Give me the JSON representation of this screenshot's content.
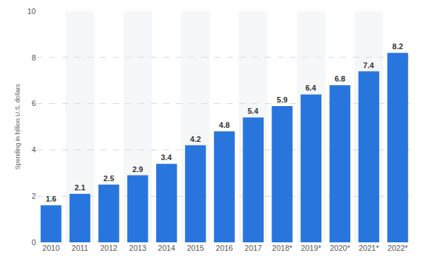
{
  "chart_data": {
    "type": "bar",
    "y_label": "Spending in billion U.S. dollars",
    "categories": [
      "2010",
      "2011",
      "2012",
      "2013",
      "2014",
      "2015",
      "2016",
      "2017",
      "2018*",
      "2019*",
      "2020*",
      "2021*",
      "2022*"
    ],
    "values": [
      1.6,
      2.1,
      2.5,
      2.9,
      3.4,
      4.2,
      4.8,
      5.4,
      5.9,
      6.4,
      6.8,
      7.4,
      8.2
    ],
    "color": "#2876dd",
    "ylim": [
      0,
      10
    ],
    "yticks": [
      0,
      2,
      4,
      6,
      8,
      10
    ],
    "grid": true,
    "data_labels": true
  }
}
